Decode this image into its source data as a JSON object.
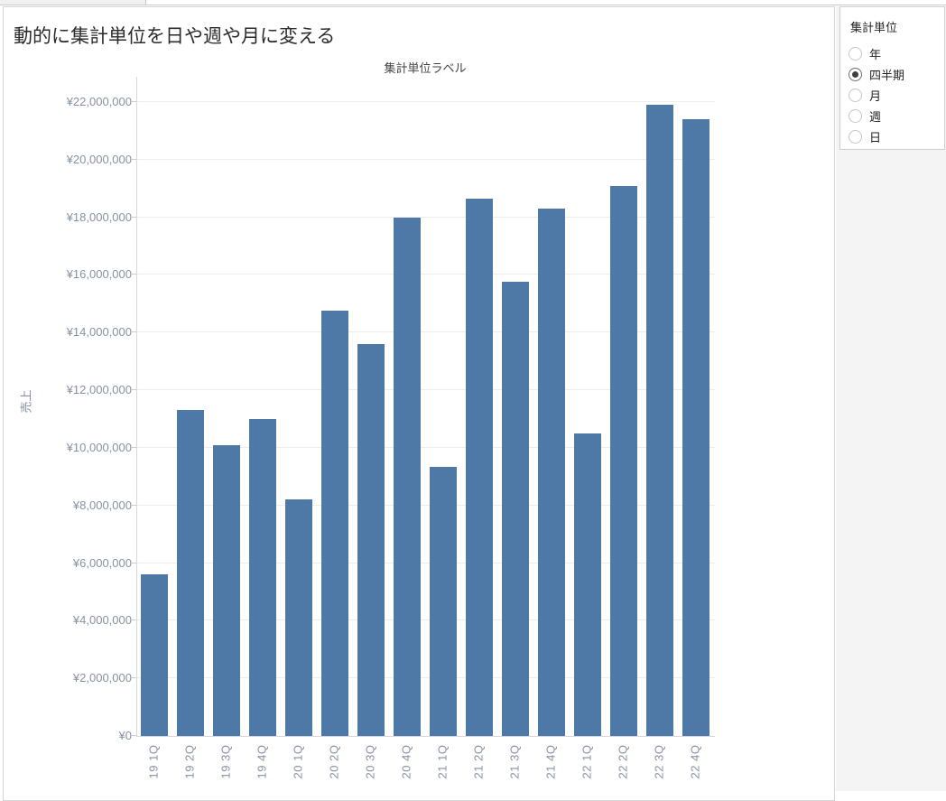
{
  "header": {
    "title": "動的に集計単位を日や週や月に変える"
  },
  "chart_data": {
    "type": "bar",
    "title": "集計単位ラベル",
    "xlabel": "",
    "ylabel": "売上",
    "categories": [
      "19 1Q",
      "19 2Q",
      "19 3Q",
      "19 4Q",
      "20 1Q",
      "20 2Q",
      "20 3Q",
      "20 4Q",
      "21 1Q",
      "21 2Q",
      "21 3Q",
      "21 4Q",
      "22 1Q",
      "22 2Q",
      "22 3Q",
      "22 4Q"
    ],
    "values": [
      5600000,
      11300000,
      10100000,
      11000000,
      8200000,
      14750000,
      13600000,
      18000000,
      9350000,
      18650000,
      15750000,
      18300000,
      10500000,
      19100000,
      21900000,
      21400000
    ],
    "ylim": [
      0,
      22000000
    ],
    "y_tick_values": [
      0,
      2000000,
      4000000,
      6000000,
      8000000,
      10000000,
      12000000,
      14000000,
      16000000,
      18000000,
      20000000,
      22000000
    ],
    "y_tick_labels": [
      "¥0",
      "¥2,000,000",
      "¥4,000,000",
      "¥6,000,000",
      "¥8,000,000",
      "¥10,000,000",
      "¥12,000,000",
      "¥14,000,000",
      "¥16,000,000",
      "¥18,000,000",
      "¥20,000,000",
      "¥22,000,000"
    ],
    "grid": true,
    "legend": "none",
    "bar_color": "#4e79a7",
    "currency": "JPY"
  },
  "parameters": {
    "title": "集計単位",
    "options": [
      {
        "label": "年",
        "selected": false
      },
      {
        "label": "四半期",
        "selected": true
      },
      {
        "label": "月",
        "selected": false
      },
      {
        "label": "週",
        "selected": false
      },
      {
        "label": "日",
        "selected": false
      }
    ]
  }
}
